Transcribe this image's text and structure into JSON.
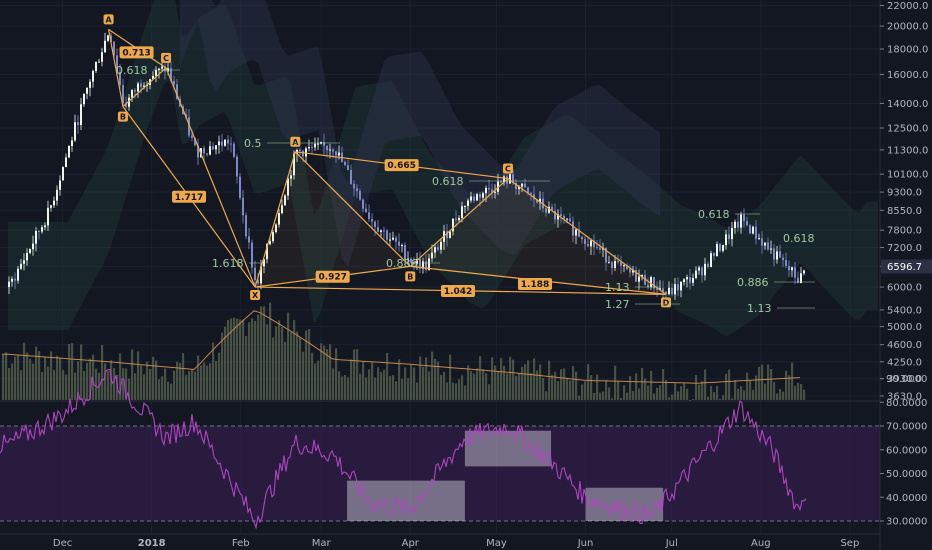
{
  "price_axis": {
    "ticks": [
      "22000.0",
      "20000.0",
      "18000.0",
      "16000.0",
      "14000.0",
      "12500.0",
      "11300.0",
      "10100.0",
      "9300.0",
      "8550.0",
      "7800.0",
      "7200.0",
      "6600.0",
      "6000.0",
      "5400.0",
      "5000.0",
      "4600.0",
      "4250.0",
      "3930.0",
      "3630.0"
    ],
    "current_price": "6596.7"
  },
  "rsi_axis": {
    "ticks": [
      "90.0000",
      "80.0000",
      "70.0000",
      "60.0000",
      "50.0000",
      "40.0000",
      "30.0000"
    ]
  },
  "time_axis": {
    "ticks": [
      "Dec",
      "2018",
      "Feb",
      "Mar",
      "Apr",
      "May",
      "Jun",
      "Jul",
      "Aug",
      "Sep"
    ]
  },
  "fib_labels": [
    "0.618",
    "0.5",
    "1.618",
    "0.886",
    "0.618",
    "1.13",
    "1.27",
    "0.618",
    "0.618",
    "0.886",
    "1.13"
  ],
  "pattern_points": [
    "A",
    "B",
    "C",
    "X",
    "A",
    "B",
    "C",
    "D",
    "D"
  ],
  "ratio_labels": [
    "0.713",
    "1.717",
    "0.927",
    "1.042",
    "0.665",
    "1.188"
  ],
  "colors": {
    "background": "#131722",
    "candle_up": "#eaf7ea",
    "candle_down": "#7f88c8",
    "pattern": "#f0a94a",
    "rsi_line": "#b045c0",
    "rsi_band": "#3a1f56",
    "cloud": "#1e3a3a",
    "volume": "#55614e"
  },
  "chart_data": [
    {
      "type": "line",
      "title": "",
      "x": [
        "2017-11-12",
        "2017-11-26",
        "2017-12-10",
        "2017-12-17",
        "2017-12-22",
        "2017-12-28",
        "2018-01-06",
        "2018-01-16",
        "2018-01-28",
        "2018-02-06",
        "2018-02-20",
        "2018-03-05",
        "2018-03-18",
        "2018-04-01",
        "2018-04-06",
        "2018-04-20",
        "2018-05-05",
        "2018-05-20",
        "2018-06-01",
        "2018-06-13",
        "2018-06-24",
        "2018-06-29",
        "2018-07-10",
        "2018-07-25",
        "2018-08-05",
        "2018-08-14",
        "2018-08-17"
      ],
      "series": [
        {
          "values": [
            6000,
            8500,
            15500,
            19700,
            13800,
            15500,
            16500,
            11200,
            11800,
            6000,
            11200,
            11500,
            8200,
            6800,
            6600,
            8900,
            9900,
            8400,
            7500,
            6500,
            6100,
            5800,
            6400,
            8200,
            7000,
            6200,
            6597
          ]
        }
      ],
      "ylabel": "",
      "ylim": [
        3630,
        22000
      ],
      "scale": "log",
      "grid": true
    },
    {
      "type": "bar",
      "x": [
        "2017-11-12",
        "2017-12-17",
        "2018-01-16",
        "2018-02-06",
        "2018-03-05",
        "2018-04-01",
        "2018-05-05",
        "2018-06-01",
        "2018-07-10",
        "2018-08-14"
      ],
      "values": [
        4400,
        4250,
        4100,
        5400,
        4300,
        4200,
        4050,
        3900,
        3850,
        3950
      ]
    },
    {
      "type": "line",
      "x": [
        "2017-11-12",
        "2017-12-01",
        "2017-12-10",
        "2017-12-17",
        "2018-01-06",
        "2018-01-16",
        "2018-02-06",
        "2018-02-20",
        "2018-03-05",
        "2018-03-18",
        "2018-04-01",
        "2018-04-20",
        "2018-05-05",
        "2018-05-20",
        "2018-06-01",
        "2018-06-13",
        "2018-06-24",
        "2018-07-10",
        "2018-07-25",
        "2018-08-05",
        "2018-08-14",
        "2018-08-17"
      ],
      "series": [
        {
          "values": [
            62,
            75,
            85,
            93,
            65,
            72,
            30,
            63,
            58,
            38,
            35,
            65,
            70,
            55,
            40,
            35,
            32,
            55,
            78,
            60,
            35,
            44
          ]
        }
      ],
      "ylim": [
        25,
        95
      ],
      "bands": [
        30,
        70
      ]
    }
  ]
}
